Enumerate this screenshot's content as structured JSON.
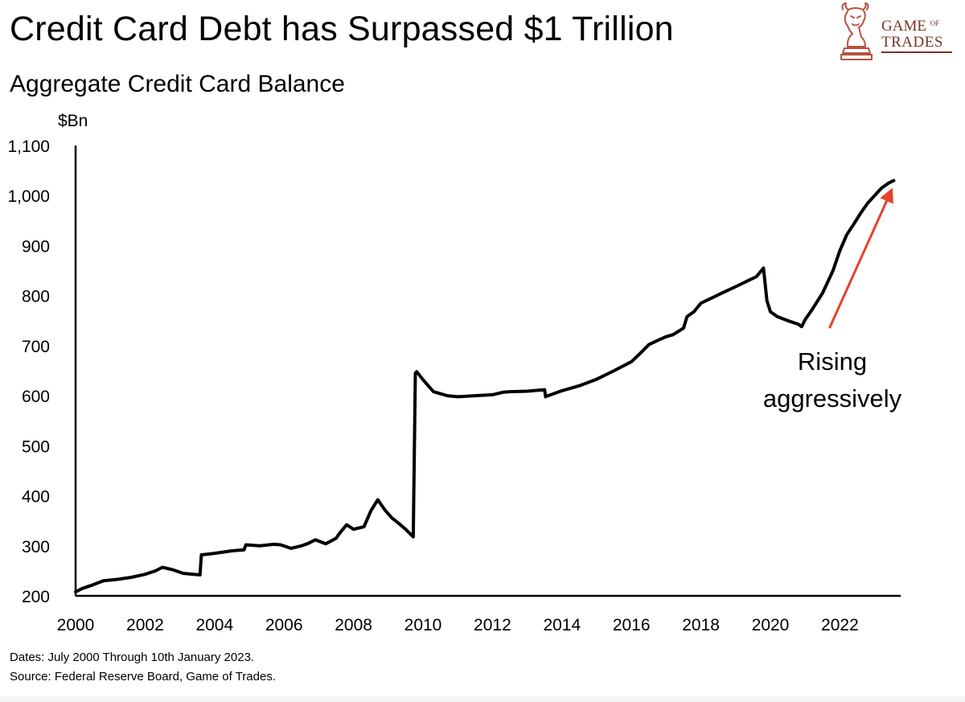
{
  "header": {
    "title": "Credit Card Debt has Surpassed $1 Trillion",
    "subtitle": "Aggregate Credit Card Balance"
  },
  "logo": {
    "line1_main": "GAME",
    "line1_small": "OF",
    "line2": "TRADES",
    "icon": "bull-chess-knight-icon",
    "color": "#7a3327"
  },
  "footer": {
    "dates_note": "Dates: July 2000 Through 10th January 2023.",
    "source_note": "Source: Federal Reserve Board, Game of Trades."
  },
  "chart_data": {
    "type": "line",
    "title": "Aggregate Credit Card Balance",
    "ylabel": "$Bn",
    "xlabel": "",
    "xlim": [
      2000,
      2023.75
    ],
    "ylim": [
      200,
      1100
    ],
    "xticks": [
      2000,
      2002,
      2004,
      2006,
      2008,
      2010,
      2012,
      2014,
      2016,
      2018,
      2020,
      2022
    ],
    "xtick_labels": [
      "2000",
      "2002",
      "2004",
      "2006",
      "2008",
      "2010",
      "2012",
      "2014",
      "2016",
      "2018",
      "2020",
      "2022"
    ],
    "yticks": [
      200,
      300,
      400,
      500,
      600,
      700,
      800,
      900,
      1000,
      1100
    ],
    "ytick_labels": [
      "200",
      "300",
      "400",
      "500",
      "600",
      "700",
      "800",
      "900",
      "1,000",
      "1,100"
    ],
    "grid": false,
    "line_color": "#000000",
    "series": [
      {
        "x": [
          2000.0,
          2000.2,
          2000.5,
          2000.8,
          2001.2,
          2001.6,
          2002.0,
          2002.3,
          2002.5,
          2002.8,
          2003.1,
          2003.4,
          2003.58,
          2003.62,
          2004.0,
          2004.5,
          2004.85,
          2004.9,
          2005.3,
          2005.7,
          2005.9,
          2006.2,
          2006.5,
          2006.7,
          2006.9,
          2007.2,
          2007.5,
          2007.6,
          2007.8,
          2008.0,
          2008.3,
          2008.5,
          2008.7,
          2008.9,
          2009.1,
          2009.3,
          2009.5,
          2009.72,
          2009.78,
          2009.82,
          2010.0,
          2010.3,
          2010.7,
          2011.0,
          2011.5,
          2012.0,
          2012.3,
          2012.5,
          2013.0,
          2013.5,
          2013.53,
          2013.6,
          2014.0,
          2014.5,
          2015.0,
          2015.5,
          2016.0,
          2016.3,
          2016.5,
          2016.8,
          2017.0,
          2017.2,
          2017.5,
          2017.6,
          2017.8,
          2018.0,
          2018.3,
          2018.6,
          2019.0,
          2019.3,
          2019.6,
          2019.8,
          2019.9,
          2020.0,
          2020.2,
          2020.5,
          2020.8,
          2020.9,
          2021.0,
          2021.2,
          2021.5,
          2021.8,
          2022.0,
          2022.2,
          2022.4,
          2022.6,
          2022.8,
          2023.0,
          2023.2,
          2023.4,
          2023.55
        ],
        "values": [
          208,
          215,
          222,
          230,
          233,
          237,
          243,
          250,
          257,
          252,
          245,
          243,
          242,
          282,
          285,
          290,
          292,
          302,
          300,
          303,
          302,
          295,
          300,
          305,
          312,
          304,
          315,
          325,
          342,
          333,
          338,
          370,
          392,
          372,
          356,
          345,
          333,
          318,
          645,
          648,
          632,
          608,
          600,
          598,
          600,
          602,
          607,
          608,
          609,
          612,
          598,
          600,
          610,
          620,
          633,
          650,
          668,
          688,
          702,
          712,
          718,
          722,
          735,
          758,
          768,
          785,
          795,
          805,
          818,
          828,
          838,
          855,
          790,
          768,
          758,
          750,
          743,
          738,
          752,
          772,
          805,
          850,
          890,
          922,
          943,
          965,
          985,
          1000,
          1015,
          1025,
          1030
        ]
      }
    ],
    "annotation": {
      "text_line1": "Rising",
      "text_line2": "aggressively",
      "arrow_color": "#e8412c",
      "arrow_from": [
        2021.7,
        735
      ],
      "arrow_to": [
        2023.45,
        1005
      ]
    }
  }
}
